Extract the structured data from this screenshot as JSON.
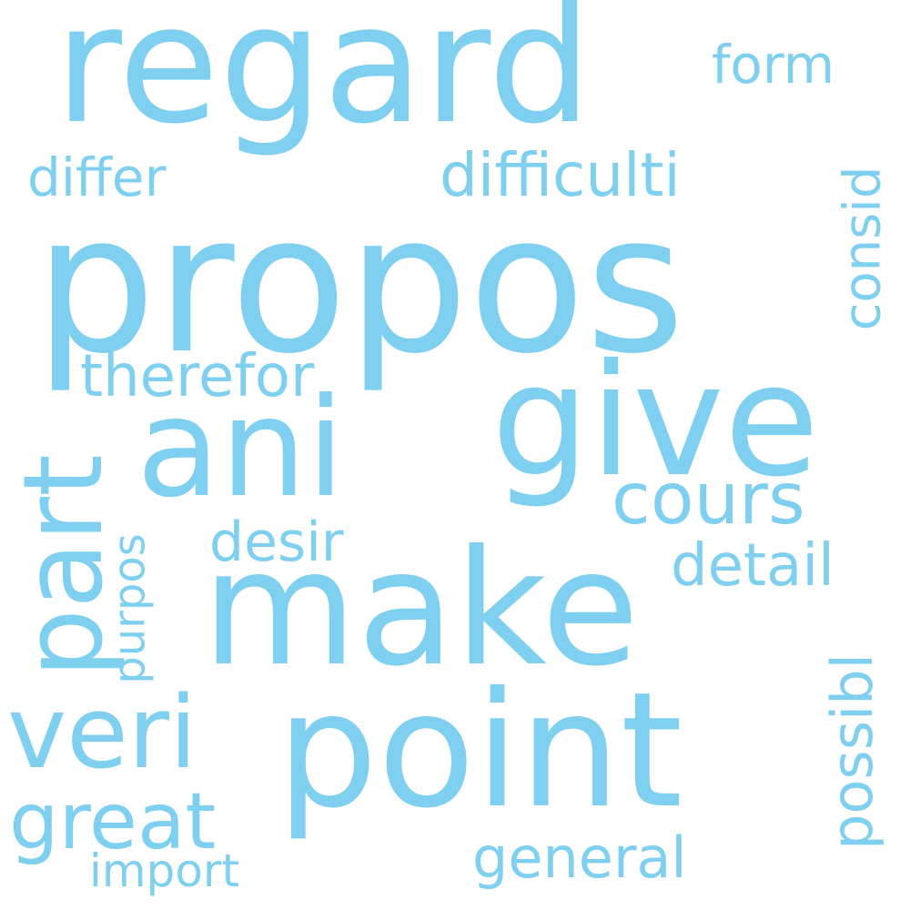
{
  "color": "#7fd0f0",
  "background": "#ffffff",
  "words": [
    {
      "text": "propos"
    },
    {
      "text": "regard"
    },
    {
      "text": "give"
    },
    {
      "text": "ani"
    },
    {
      "text": "make"
    },
    {
      "text": "point"
    },
    {
      "text": "part"
    },
    {
      "text": "veri"
    },
    {
      "text": "great"
    },
    {
      "text": "cours"
    },
    {
      "text": "difficulti"
    },
    {
      "text": "therefor"
    },
    {
      "text": "differ"
    },
    {
      "text": "form"
    },
    {
      "text": "consid"
    },
    {
      "text": "desir"
    },
    {
      "text": "detail"
    },
    {
      "text": "purpos"
    },
    {
      "text": "possibl"
    },
    {
      "text": "general"
    },
    {
      "text": "import"
    }
  ]
}
